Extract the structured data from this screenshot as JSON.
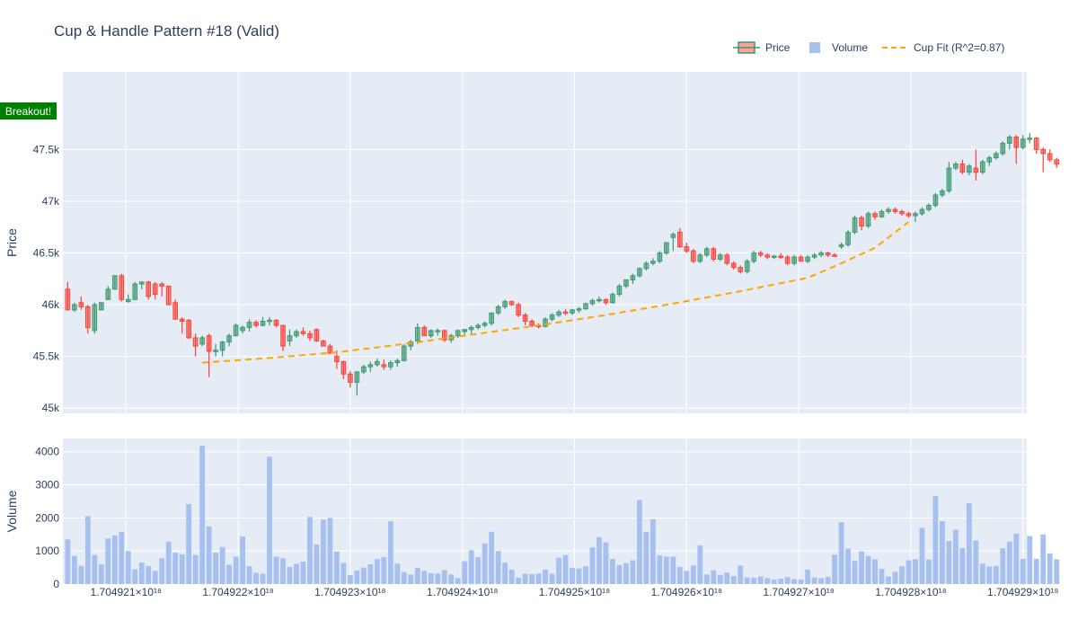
{
  "chart_data": {
    "title": "Cup & Handle Pattern #18 (Valid)",
    "type": "candlestick",
    "legend": {
      "placement": "top-right",
      "entries": [
        {
          "name": "Price",
          "type": "candlestick"
        },
        {
          "name": "Volume",
          "type": "bar"
        },
        {
          "name": "Cup Fit (R^2=0.87)",
          "type": "line"
        }
      ]
    },
    "colors": {
      "increasing": "#3d9970",
      "increasing_fill": "#3d9970",
      "decreasing": "#ff4136",
      "decreasing_fill": "#ff4136",
      "volume": "#a6c0f0",
      "fit": "#ffa500",
      "plot_bg": "#e5ecf6",
      "annotation_bg": "#008000"
    },
    "price_axis": {
      "title": "Price",
      "range": [
        44950,
        48250
      ],
      "ticks": [
        45000,
        45500,
        46000,
        46500,
        47000,
        47500
      ],
      "tick_labels": [
        "45k",
        "45.5k",
        "46k",
        "46.5k",
        "47k",
        "47.5k"
      ],
      "grid": true
    },
    "volume_axis": {
      "title": "Volume",
      "range": [
        0,
        4400
      ],
      "ticks": [
        0,
        1000,
        2000,
        3000,
        4000
      ],
      "tick_labels": [
        "0",
        "1000",
        "2000",
        "3000",
        "4000"
      ],
      "grid": true
    },
    "x_axis": {
      "range": [
        1704920437,
        1704929034
      ],
      "ticks": [
        1704921000,
        1704922000,
        1704923000,
        1704924000,
        1704925000,
        1704926000,
        1704927000,
        1704928000,
        1704929000
      ],
      "tick_labels": [
        "1.704921×10¹⁸",
        "1.704922×10¹⁸",
        "1.704923×10¹⁸",
        "1.704924×10¹⁸",
        "1.704925×10¹⁸",
        "1.704926×10¹⁸",
        "1.704927×10¹⁸",
        "1.704928×10¹⁸",
        "1.704929×10¹⁸"
      ],
      "grid": true
    },
    "x_start": 1704920480,
    "x_step": 60,
    "ohlc": [
      [
        46150,
        46220,
        45950,
        45950
      ],
      [
        45950,
        46020,
        45930,
        46000
      ],
      [
        46020,
        46080,
        45950,
        45980
      ],
      [
        45980,
        46000,
        45720,
        45780
      ],
      [
        45750,
        46020,
        45720,
        46000
      ],
      [
        45950,
        46020,
        45950,
        46020
      ],
      [
        46050,
        46180,
        46050,
        46150
      ],
      [
        46150,
        46280,
        46150,
        46280
      ],
      [
        46280,
        46300,
        46030,
        46050
      ],
      [
        46030,
        46100,
        46020,
        46050
      ],
      [
        46050,
        46220,
        46050,
        46200
      ],
      [
        46200,
        46220,
        46150,
        46220
      ],
      [
        46220,
        46230,
        46050,
        46080
      ],
      [
        46200,
        46220,
        46050,
        46100
      ],
      [
        46200,
        46220,
        46080,
        46180
      ],
      [
        46180,
        46180,
        46000,
        46000
      ],
      [
        46020,
        46050,
        45860,
        45860
      ],
      [
        45860,
        45880,
        45720,
        45840
      ],
      [
        45850,
        45860,
        45670,
        45680
      ],
      [
        45680,
        45720,
        45500,
        45600
      ],
      [
        45620,
        45700,
        45600,
        45680
      ],
      [
        45700,
        45720,
        45300,
        45550
      ],
      [
        45550,
        45620,
        45500,
        45560
      ],
      [
        45560,
        45650,
        45500,
        45640
      ],
      [
        45640,
        45720,
        45600,
        45700
      ],
      [
        45700,
        45820,
        45700,
        45800
      ],
      [
        45750,
        45800,
        45720,
        45780
      ],
      [
        45780,
        45860,
        45740,
        45830
      ],
      [
        45830,
        45850,
        45780,
        45800
      ],
      [
        45800,
        45880,
        45790,
        45840
      ],
      [
        45840,
        45880,
        45800,
        45850
      ],
      [
        45850,
        45860,
        45780,
        45800
      ],
      [
        45800,
        45800,
        45550,
        45600
      ],
      [
        45650,
        45760,
        45600,
        45700
      ],
      [
        45700,
        45760,
        45680,
        45740
      ],
      [
        45740,
        45780,
        45700,
        45720
      ],
      [
        45720,
        45750,
        45650,
        45680
      ],
      [
        45760,
        45770,
        45640,
        45650
      ],
      [
        45650,
        45660,
        45600,
        45600
      ],
      [
        45600,
        45620,
        45530,
        45530
      ],
      [
        45500,
        45560,
        45380,
        45450
      ],
      [
        45450,
        45460,
        45280,
        45330
      ],
      [
        45330,
        45360,
        45200,
        45250
      ],
      [
        45250,
        45360,
        45120,
        45350
      ],
      [
        45350,
        45420,
        45330,
        45400
      ],
      [
        45400,
        45450,
        45350,
        45420
      ],
      [
        45420,
        45480,
        45400,
        45450
      ],
      [
        45420,
        45470,
        45370,
        45400
      ],
      [
        45400,
        45460,
        45370,
        45440
      ],
      [
        45440,
        45480,
        45400,
        45460
      ],
      [
        45460,
        45620,
        45450,
        45600
      ],
      [
        45600,
        45660,
        45560,
        45640
      ],
      [
        45650,
        45820,
        45620,
        45780
      ],
      [
        45780,
        45800,
        45700,
        45700
      ],
      [
        45700,
        45760,
        45680,
        45750
      ],
      [
        45740,
        45770,
        45700,
        45750
      ],
      [
        45750,
        45760,
        45640,
        45660
      ],
      [
        45660,
        45720,
        45630,
        45700
      ],
      [
        45700,
        45760,
        45680,
        45750
      ],
      [
        45740,
        45760,
        45700,
        45760
      ],
      [
        45760,
        45800,
        45720,
        45780
      ],
      [
        45780,
        45820,
        45760,
        45800
      ],
      [
        45800,
        45840,
        45780,
        45820
      ],
      [
        45820,
        45920,
        45800,
        45920
      ],
      [
        45920,
        46000,
        45900,
        45980
      ],
      [
        45980,
        46050,
        45960,
        46030
      ],
      [
        46030,
        46040,
        45990,
        46000
      ],
      [
        46000,
        46020,
        45880,
        45900
      ],
      [
        45900,
        45920,
        45800,
        45840
      ],
      [
        45840,
        45860,
        45780,
        45800
      ],
      [
        45800,
        45820,
        45770,
        45790
      ],
      [
        45790,
        45880,
        45780,
        45860
      ],
      [
        45860,
        45920,
        45840,
        45900
      ],
      [
        45900,
        45950,
        45880,
        45930
      ],
      [
        45930,
        45960,
        45900,
        45920
      ],
      [
        45920,
        45960,
        45900,
        45950
      ],
      [
        45950,
        45980,
        45920,
        45960
      ],
      [
        45960,
        46020,
        45950,
        46010
      ],
      [
        46010,
        46060,
        45990,
        46040
      ],
      [
        46040,
        46080,
        46020,
        46050
      ],
      [
        46050,
        46060,
        46000,
        46020
      ],
      [
        46020,
        46120,
        46010,
        46100
      ],
      [
        46100,
        46200,
        46080,
        46180
      ],
      [
        46180,
        46240,
        46160,
        46240
      ],
      [
        46240,
        46300,
        46200,
        46280
      ],
      [
        46280,
        46360,
        46260,
        46350
      ],
      [
        46350,
        46420,
        46330,
        46400
      ],
      [
        46400,
        46450,
        46380,
        46420
      ],
      [
        46420,
        46520,
        46400,
        46500
      ],
      [
        46500,
        46600,
        46480,
        46600
      ],
      [
        46650,
        46700,
        46520,
        46680
      ],
      [
        46700,
        46740,
        46550,
        46560
      ],
      [
        46560,
        46600,
        46500,
        46520
      ],
      [
        46520,
        46540,
        46400,
        46420
      ],
      [
        46420,
        46500,
        46400,
        46480
      ],
      [
        46480,
        46560,
        46460,
        46540
      ],
      [
        46540,
        46560,
        46420,
        46440
      ],
      [
        46440,
        46500,
        46420,
        46480
      ],
      [
        46480,
        46500,
        46380,
        46400
      ],
      [
        46400,
        46420,
        46340,
        46360
      ],
      [
        46360,
        46380,
        46300,
        46320
      ],
      [
        46320,
        46440,
        46300,
        46420
      ],
      [
        46420,
        46520,
        46400,
        46500
      ],
      [
        46500,
        46520,
        46460,
        46480
      ],
      [
        46480,
        46500,
        46440,
        46460
      ],
      [
        46460,
        46480,
        46440,
        46470
      ],
      [
        46470,
        46500,
        46440,
        46460
      ],
      [
        46460,
        46480,
        46380,
        46400
      ],
      [
        46400,
        46480,
        46380,
        46460
      ],
      [
        46460,
        46480,
        46420,
        46420
      ],
      [
        46420,
        46480,
        46400,
        46460
      ],
      [
        46460,
        46500,
        46440,
        46480
      ],
      [
        46480,
        46520,
        46460,
        46500
      ],
      [
        46500,
        46510,
        46460,
        46480
      ],
      [
        46480,
        46500,
        46460,
        46470
      ],
      [
        46560,
        46600,
        46540,
        46580
      ],
      [
        46580,
        46720,
        46560,
        46700
      ],
      [
        46700,
        46860,
        46680,
        46840
      ],
      [
        46840,
        46860,
        46720,
        46760
      ],
      [
        46760,
        46900,
        46740,
        46880
      ],
      [
        46880,
        46900,
        46820,
        46850
      ],
      [
        46850,
        46920,
        46840,
        46900
      ],
      [
        46900,
        46940,
        46880,
        46920
      ],
      [
        46920,
        46940,
        46880,
        46900
      ],
      [
        46900,
        46920,
        46860,
        46880
      ],
      [
        46880,
        46900,
        46840,
        46860
      ],
      [
        46860,
        46900,
        46800,
        46880
      ],
      [
        46880,
        46940,
        46860,
        46920
      ],
      [
        46920,
        46980,
        46900,
        46960
      ],
      [
        46960,
        47080,
        46940,
        47060
      ],
      [
        47060,
        47120,
        47040,
        47100
      ],
      [
        47100,
        47380,
        47080,
        47320
      ],
      [
        47320,
        47380,
        47300,
        47360
      ],
      [
        47360,
        47400,
        47260,
        47280
      ],
      [
        47280,
        47360,
        47250,
        47340
      ],
      [
        47320,
        47500,
        47200,
        47280
      ],
      [
        47280,
        47400,
        47260,
        47380
      ],
      [
        47380,
        47440,
        47340,
        47420
      ],
      [
        47420,
        47480,
        47400,
        47460
      ],
      [
        47460,
        47580,
        47440,
        47560
      ],
      [
        47560,
        47640,
        47500,
        47620
      ],
      [
        47620,
        47640,
        47360,
        47520
      ],
      [
        47520,
        47640,
        47500,
        47600
      ],
      [
        47600,
        47660,
        47560,
        47610
      ],
      [
        47610,
        47620,
        47460,
        47500
      ],
      [
        47500,
        47520,
        47280,
        47460
      ],
      [
        47460,
        47500,
        47380,
        47400
      ],
      [
        47400,
        47420,
        47320,
        47360
      ]
    ],
    "volume": [
      1350,
      850,
      550,
      2050,
      880,
      600,
      1380,
      1470,
      1580,
      1000,
      450,
      650,
      550,
      400,
      780,
      1280,
      950,
      900,
      2420,
      880,
      4180,
      1740,
      950,
      1120,
      580,
      830,
      1440,
      540,
      340,
      310,
      3850,
      830,
      780,
      520,
      610,
      680,
      2030,
      1200,
      1950,
      2000,
      980,
      640,
      270,
      410,
      500,
      600,
      750,
      820,
      1900,
      620,
      360,
      290,
      490,
      400,
      330,
      320,
      420,
      290,
      180,
      690,
      1020,
      810,
      1230,
      1580,
      1000,
      650,
      430,
      190,
      310,
      300,
      320,
      440,
      310,
      800,
      880,
      490,
      470,
      540,
      1110,
      1420,
      1260,
      760,
      580,
      630,
      720,
      2540,
      1580,
      1960,
      870,
      830,
      830,
      520,
      400,
      560,
      1170,
      290,
      410,
      280,
      350,
      240,
      560,
      200,
      190,
      230,
      180,
      140,
      160,
      210,
      150,
      140,
      440,
      200,
      180,
      220,
      890,
      1870,
      1070,
      700,
      990,
      850,
      750,
      460,
      230,
      370,
      540,
      720,
      750,
      1700,
      740,
      2660,
      1900,
      1300,
      1640,
      1090,
      2440,
      1320,
      620,
      530,
      550,
      1080,
      1280,
      1530,
      760,
      1450,
      760,
      1500,
      930,
      750
    ],
    "cup_fit": {
      "name": "Cup Fit (R^2=0.87)",
      "x_start_index": 20,
      "x_end_index": 125,
      "y": [
        45440,
        45485,
        45540,
        45620,
        45710,
        45800,
        45900,
        46010,
        46130,
        46260,
        46400,
        46550,
        46700,
        46800
      ],
      "y_positions_index": [
        20,
        30,
        40,
        50,
        60,
        70,
        80,
        90,
        100,
        110,
        115,
        120,
        123,
        125
      ]
    },
    "annotation": {
      "text": "Breakout!"
    }
  }
}
